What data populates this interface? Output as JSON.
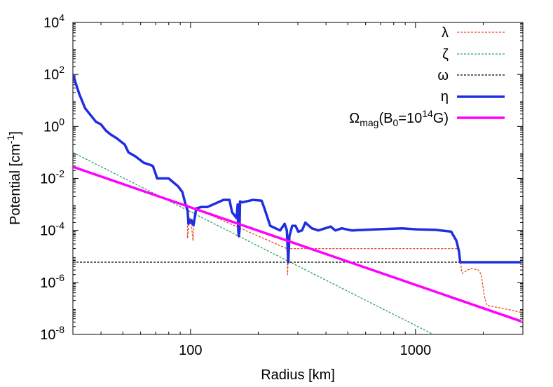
{
  "chart_data": {
    "type": "line",
    "xlabel": "Radius [km]",
    "ylabel_main": "Potential [cm",
    "ylabel_sup": "-1",
    "ylabel_end": "]",
    "x_scale": "log",
    "y_scale": "log",
    "xlim": [
      30,
      3000
    ],
    "ylim": [
      1e-08,
      10000.0
    ],
    "x_ticks": [
      {
        "value": 100,
        "label": "100"
      },
      {
        "value": 1000,
        "label": "1000"
      }
    ],
    "y_ticks": [
      {
        "value": 10000.0,
        "base": "10",
        "exp": "4"
      },
      {
        "value": 100.0,
        "base": "10",
        "exp": "2"
      },
      {
        "value": 1.0,
        "base": "10",
        "exp": "0"
      },
      {
        "value": 0.01,
        "base": "10",
        "exp": "-2"
      },
      {
        "value": 0.0001,
        "base": "10",
        "exp": "-4"
      },
      {
        "value": 1e-06,
        "base": "10",
        "exp": "-6"
      },
      {
        "value": 1e-08,
        "base": "10",
        "exp": "-8"
      }
    ],
    "legend_position": "top-right",
    "series": [
      {
        "name": "λ",
        "color": "#e8471b",
        "dash": "3,2",
        "width": 1.3,
        "points": [
          [
            96.9,
            0.001
          ],
          [
            96.9,
            5e-05
          ],
          [
            98.3,
            0.00016
          ],
          [
            99.5,
            0.0003
          ],
          [
            101,
            0.00016
          ],
          [
            102.5,
            4e-05
          ],
          [
            104,
            0.00022
          ],
          [
            105,
            0.0007
          ],
          [
            268,
            2e-05
          ],
          [
            270,
            2e-06
          ],
          [
            272,
            1e-05
          ],
          [
            274,
            2e-05
          ],
          [
            1560,
            2e-05
          ],
          [
            1600,
            3e-06
          ],
          [
            1620,
            2.2e-06
          ],
          [
            1700,
            3e-06
          ],
          [
            1780,
            3.4e-06
          ],
          [
            1900,
            3e-06
          ],
          [
            1960,
            2e-06
          ],
          [
            2020,
            3e-07
          ],
          [
            2080,
            1.3e-07
          ],
          [
            2300,
            1.1e-07
          ],
          [
            2600,
            9e-08
          ],
          [
            2950,
            7e-08
          ]
        ]
      },
      {
        "name": "ζ",
        "color": "#2ca25f",
        "dash": "3,2",
        "width": 1.3,
        "points": [
          [
            30,
            0.1
          ],
          [
            1200,
            1e-08
          ]
        ]
      },
      {
        "name": "ω",
        "color": "#000000",
        "dash": "3,2",
        "width": 1.3,
        "points": [
          [
            30,
            6e-06
          ],
          [
            2950,
            6e-06
          ]
        ]
      },
      {
        "name": "η",
        "color": "#1e2ee0",
        "dash": "",
        "width": 3.5,
        "points": [
          [
            30,
            100
          ],
          [
            32,
            18
          ],
          [
            34,
            5
          ],
          [
            38,
            1.5
          ],
          [
            40,
            1.2
          ],
          [
            42,
            0.7
          ],
          [
            44,
            0.5
          ],
          [
            47,
            0.35
          ],
          [
            51,
            0.2
          ],
          [
            53,
            0.1
          ],
          [
            57,
            0.07
          ],
          [
            62,
            0.04
          ],
          [
            65,
            0.035
          ],
          [
            68,
            0.03
          ],
          [
            70,
            0.015
          ],
          [
            71,
            0.01
          ],
          [
            77,
            0.01
          ],
          [
            80,
            0.01
          ],
          [
            88,
            0.005
          ],
          [
            92,
            0.003
          ],
          [
            95,
            0.001
          ],
          [
            97,
            0.0006
          ],
          [
            98,
            0.00018
          ],
          [
            99,
            0.00025
          ],
          [
            100,
            0.0002
          ],
          [
            101,
            0.00025
          ],
          [
            103,
            0.00016
          ],
          [
            104,
            0.00025
          ],
          [
            106,
            0.0007
          ],
          [
            112,
            0.0008
          ],
          [
            119,
            0.0008
          ],
          [
            140,
            0.0015
          ],
          [
            149,
            0.0015
          ],
          [
            153,
            0.0005
          ],
          [
            160,
            0.0003
          ],
          [
            162,
            0.001
          ],
          [
            163,
            0.0001
          ],
          [
            164,
            6e-05
          ],
          [
            165,
            0.0001
          ],
          [
            166,
            0.0013
          ],
          [
            170,
            0.0012
          ],
          [
            190,
            0.0015
          ],
          [
            207,
            0.0014
          ],
          [
            213,
            0.0007
          ],
          [
            226,
            0.00015
          ],
          [
            250,
            0.0001
          ],
          [
            262,
            0.00018
          ],
          [
            268,
            0.0001
          ],
          [
            272,
            6e-06
          ],
          [
            275,
            6e-05
          ],
          [
            283,
            0.00015
          ],
          [
            293,
            0.00015
          ],
          [
            301,
            9e-05
          ],
          [
            313,
            0.0001
          ],
          [
            324,
            0.0002
          ],
          [
            346,
            0.00012
          ],
          [
            370,
            0.0001
          ],
          [
            420,
            0.00014
          ],
          [
            440,
            0.0001
          ],
          [
            470,
            0.00012
          ],
          [
            520,
            0.0001
          ],
          [
            670,
            0.00011
          ],
          [
            870,
            0.00012
          ],
          [
            1010,
            0.00011
          ],
          [
            1230,
            0.000105
          ],
          [
            1440,
            9e-05
          ],
          [
            1520,
            4e-05
          ],
          [
            1560,
            1.6e-05
          ],
          [
            1580,
            6e-06
          ],
          [
            2950,
            6e-06
          ]
        ]
      },
      {
        "name_main": "Ω",
        "name_sub": "mag",
        "name_paren": "(B",
        "name_sub2": "0",
        "name_eq": "=10",
        "name_sup": "14",
        "name_end": "G)",
        "color": "#ff00ff",
        "dash": "",
        "width": 3.5,
        "points": [
          [
            30,
            0.028
          ],
          [
            2950,
            3.2e-08
          ]
        ]
      }
    ]
  }
}
